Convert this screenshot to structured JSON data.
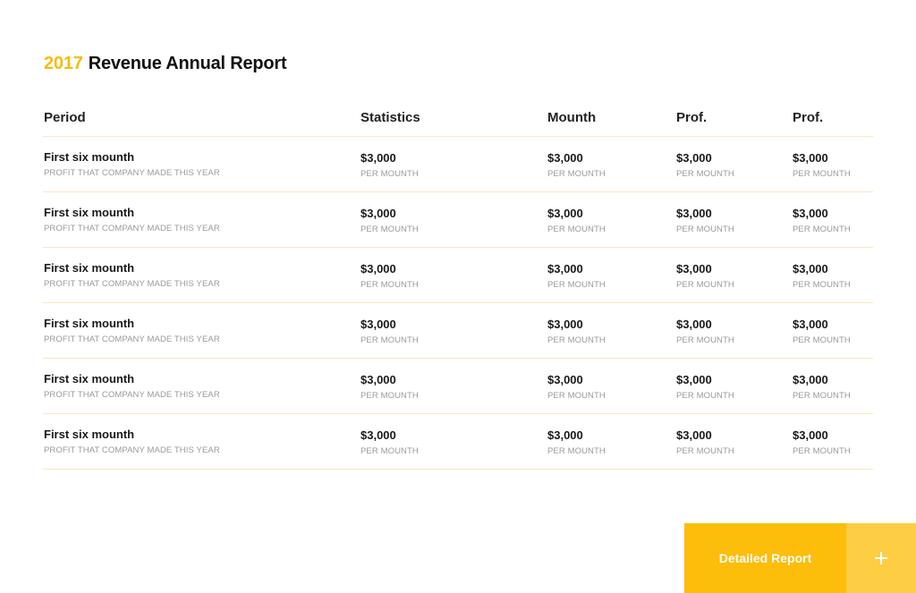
{
  "title": {
    "year": "2017",
    "text": "Revenue Annual Report",
    "year_color": "#f8bb0c"
  },
  "table": {
    "headers": [
      "Period",
      "Statistics",
      "Mounth",
      "Prof.",
      "Prof."
    ],
    "rows": [
      {
        "period": "First six mounth",
        "period_sub": "PROFIT THAT COMPANY MADE THIS YEAR",
        "cells": [
          {
            "value": "$3,000",
            "sub": "PER MOUNTH"
          },
          {
            "value": "$3,000",
            "sub": "PER MOUNTH"
          },
          {
            "value": "$3,000",
            "sub": "PER MOUNTH"
          },
          {
            "value": "$3,000",
            "sub": "PER MOUNTH"
          }
        ]
      },
      {
        "period": "First six mounth",
        "period_sub": "PROFIT THAT COMPANY MADE THIS YEAR",
        "cells": [
          {
            "value": "$3,000",
            "sub": "PER MOUNTH"
          },
          {
            "value": "$3,000",
            "sub": "PER MOUNTH"
          },
          {
            "value": "$3,000",
            "sub": "PER MOUNTH"
          },
          {
            "value": "$3,000",
            "sub": "PER MOUNTH"
          }
        ]
      },
      {
        "period": "First six mounth",
        "period_sub": "PROFIT THAT COMPANY MADE THIS YEAR",
        "cells": [
          {
            "value": "$3,000",
            "sub": "PER MOUNTH"
          },
          {
            "value": "$3,000",
            "sub": "PER MOUNTH"
          },
          {
            "value": "$3,000",
            "sub": "PER MOUNTH"
          },
          {
            "value": "$3,000",
            "sub": "PER MOUNTH"
          }
        ]
      },
      {
        "period": "First six mounth",
        "period_sub": "PROFIT THAT COMPANY MADE THIS YEAR",
        "cells": [
          {
            "value": "$3,000",
            "sub": "PER MOUNTH"
          },
          {
            "value": "$3,000",
            "sub": "PER MOUNTH"
          },
          {
            "value": "$3,000",
            "sub": "PER MOUNTH"
          },
          {
            "value": "$3,000",
            "sub": "PER MOUNTH"
          }
        ]
      },
      {
        "period": "First six mounth",
        "period_sub": "PROFIT THAT COMPANY MADE THIS YEAR",
        "cells": [
          {
            "value": "$3,000",
            "sub": "PER MOUNTH"
          },
          {
            "value": "$3,000",
            "sub": "PER MOUNTH"
          },
          {
            "value": "$3,000",
            "sub": "PER MOUNTH"
          },
          {
            "value": "$3,000",
            "sub": "PER MOUNTH"
          }
        ]
      },
      {
        "period": "First six mounth",
        "period_sub": "PROFIT THAT COMPANY MADE THIS YEAR",
        "cells": [
          {
            "value": "$3,000",
            "sub": "PER MOUNTH"
          },
          {
            "value": "$3,000",
            "sub": "PER MOUNTH"
          },
          {
            "value": "$3,000",
            "sub": "PER MOUNTH"
          },
          {
            "value": "$3,000",
            "sub": "PER MOUNTH"
          }
        ]
      }
    ]
  },
  "cta": {
    "label": "Detailed Report",
    "icon": "plus-icon",
    "primary_color": "#fcbd0b",
    "secondary_color": "#fdce44"
  }
}
